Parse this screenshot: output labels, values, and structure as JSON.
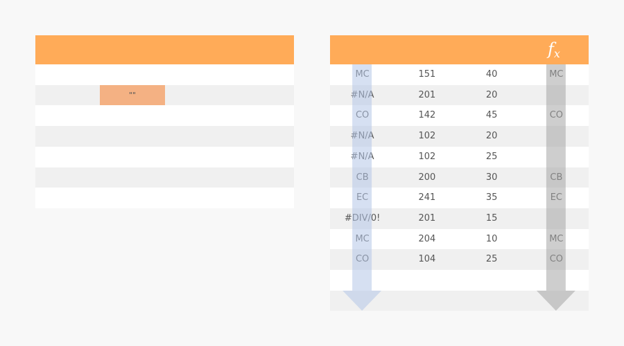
{
  "colors": {
    "background": "#f8f8f8",
    "header": "#ffab58",
    "row_even": "#f0f0f0",
    "row_odd": "#ffffff",
    "highlight": "#f4b183",
    "arrow_blue": "#b4c6e7",
    "arrow_gray": "#a6a6a6",
    "text": "#555555"
  },
  "left_table": {
    "highlight_cell": {
      "text": "\"\"",
      "row": 1,
      "column": 1
    }
  },
  "right_table": {
    "header_icon": "fx-function-icon",
    "fx_main": "f",
    "fx_sub": "x",
    "rows": [
      [
        "MC",
        "151",
        "40",
        "MC"
      ],
      [
        "#N/A",
        "201",
        "20",
        ""
      ],
      [
        "CO",
        "142",
        "45",
        "CO"
      ],
      [
        "#N/A",
        "102",
        "20",
        ""
      ],
      [
        "#N/A",
        "102",
        "25",
        ""
      ],
      [
        "CB",
        "200",
        "30",
        "CB"
      ],
      [
        "EC",
        "241",
        "35",
        "EC"
      ],
      [
        "#DIV/0!",
        "201",
        "15",
        ""
      ],
      [
        "MC",
        "204",
        "10",
        "MC"
      ],
      [
        "CO",
        "104",
        "25",
        "CO"
      ],
      [
        "",
        "",
        "",
        ""
      ],
      [
        "",
        "",
        "",
        ""
      ]
    ],
    "arrows": [
      {
        "name": "down-arrow-blue-icon",
        "color_key": "arrow_blue",
        "column": 0
      },
      {
        "name": "down-arrow-gray-icon",
        "color_key": "arrow_gray",
        "column": 3
      }
    ]
  }
}
